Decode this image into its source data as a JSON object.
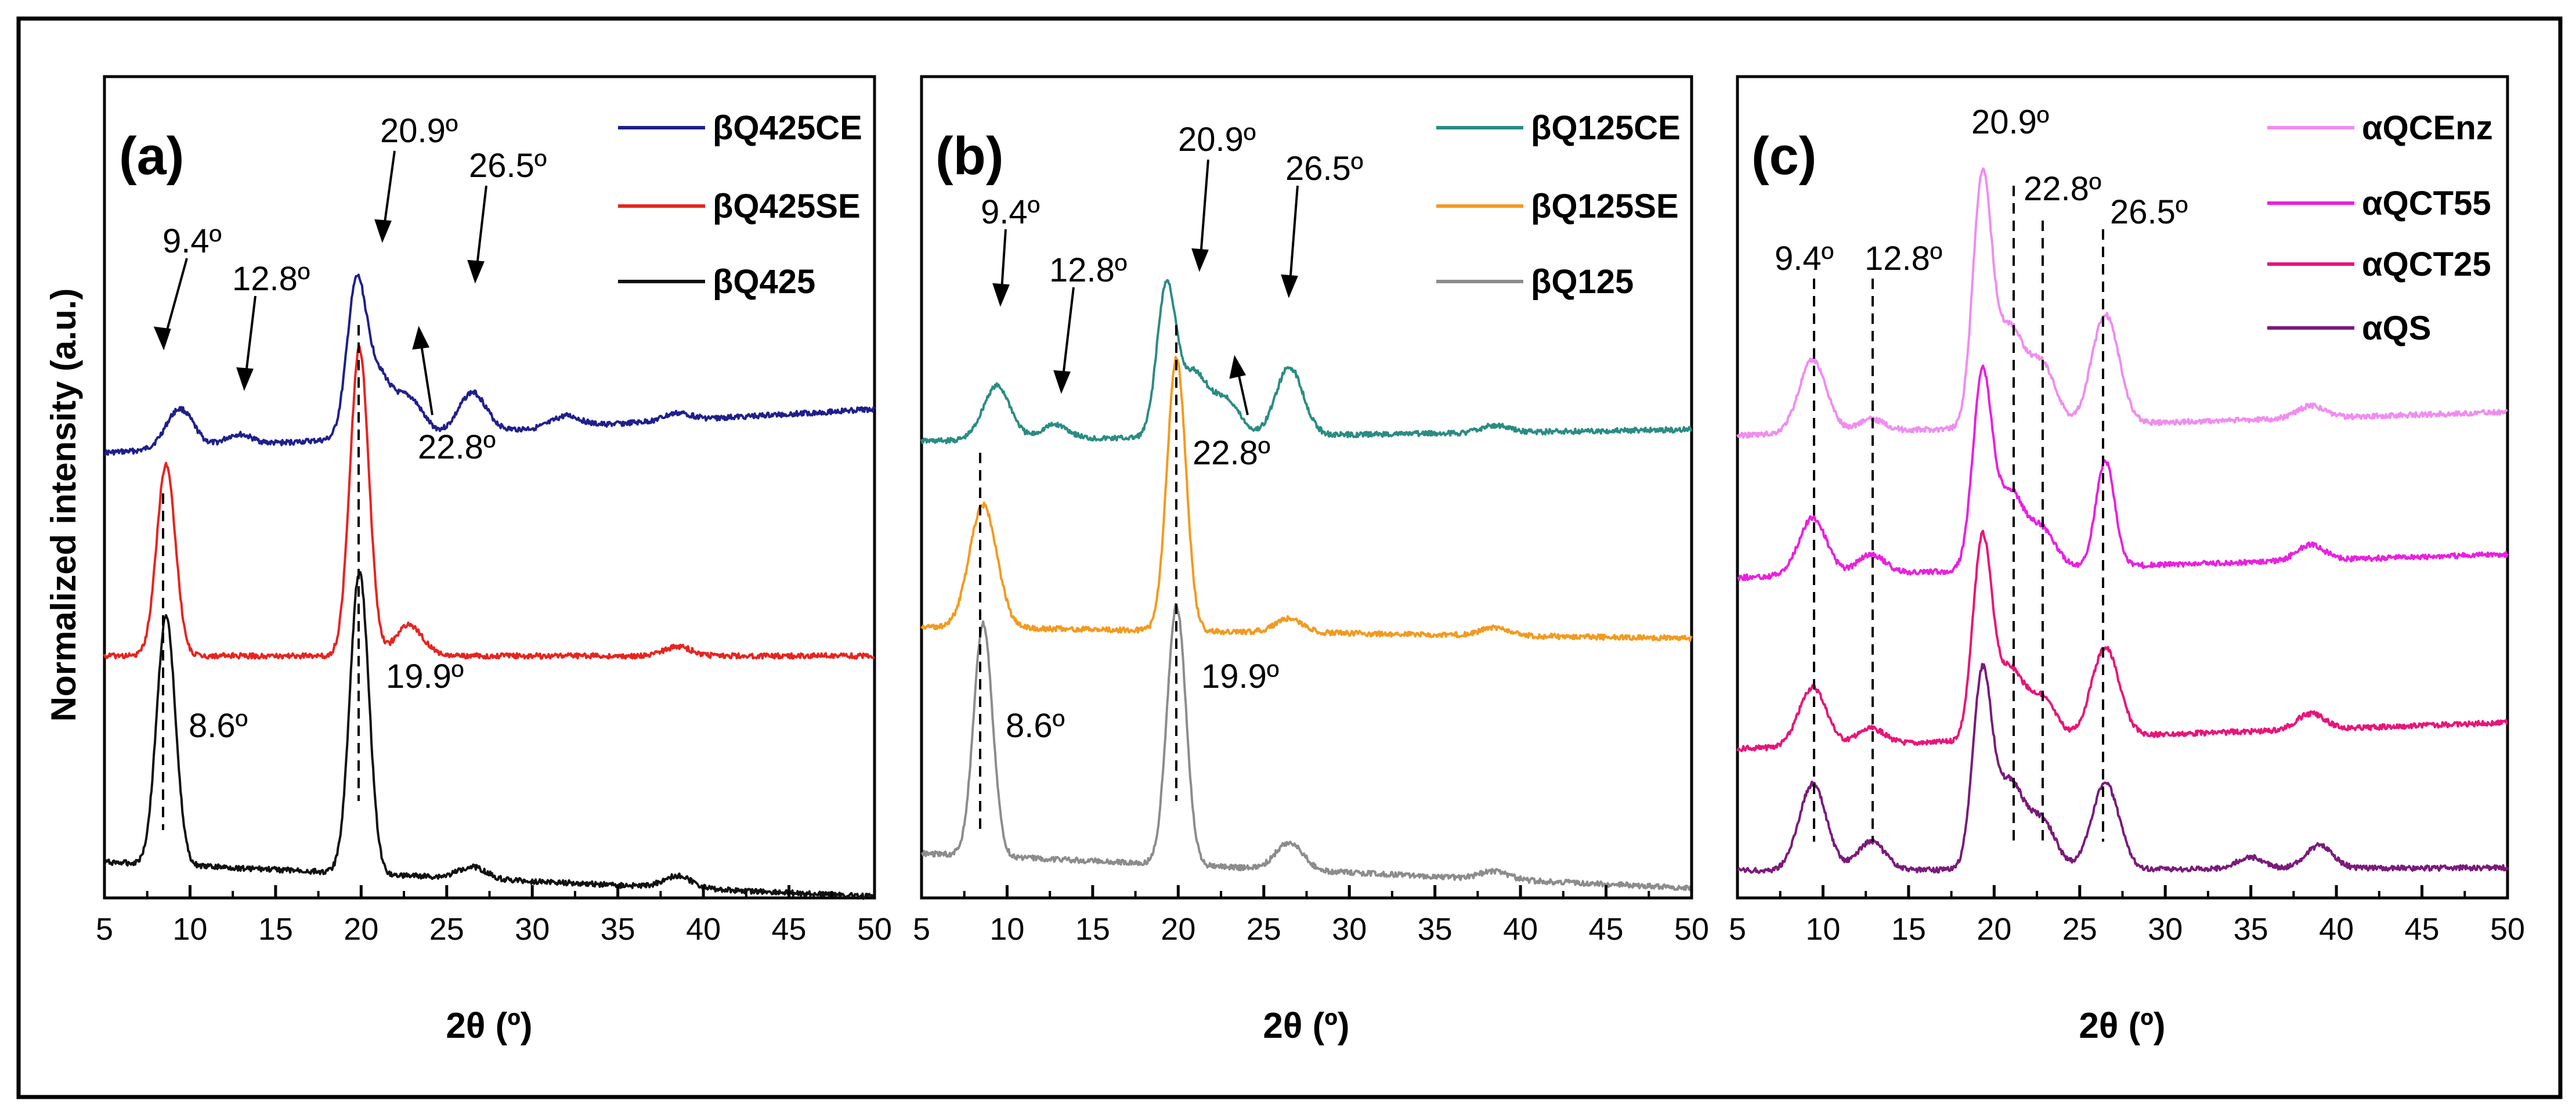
{
  "ylabel": "Normalized intensity (a.u.)",
  "chart_data": [
    {
      "type": "line",
      "panel_label": "(a)",
      "xlabel": "2θ (º)",
      "xlim": [
        5,
        50
      ],
      "xticks": [
        5,
        10,
        15,
        20,
        25,
        30,
        35,
        40,
        45,
        50
      ],
      "series": [
        {
          "name": "βQ425CE",
          "color": "#1f1f8c",
          "peaks": [
            {
              "x": 9.4,
              "y": 0.22
            },
            {
              "x": 12.8,
              "y": 0.06
            },
            {
              "x": 19.7,
              "y": 0.78
            },
            {
              "x": 20.9,
              "y": 0.35
            },
            {
              "x": 22.8,
              "y": 0.2
            },
            {
              "x": 26.5,
              "y": 0.22
            },
            {
              "x": 32,
              "y": 0.06
            },
            {
              "x": 38.5,
              "y": 0.04
            }
          ]
        },
        {
          "name": "βQ425SE",
          "color": "#e8231f",
          "peaks": [
            {
              "x": 8.6,
              "y": 0.62
            },
            {
              "x": 19.9,
              "y": 1.0
            },
            {
              "x": 22.8,
              "y": 0.1
            },
            {
              "x": 38.5,
              "y": 0.03
            }
          ]
        },
        {
          "name": "βQ425",
          "color": "#111111",
          "peaks": [
            {
              "x": 8.6,
              "y": 0.82
            },
            {
              "x": 19.9,
              "y": 1.0
            },
            {
              "x": 26.5,
              "y": 0.04
            },
            {
              "x": 38.5,
              "y": 0.04
            }
          ]
        }
      ],
      "annotations": [
        "9.4º",
        "12.8º",
        "20.9º",
        "26.5º",
        "22.8º",
        "8.6º",
        "19.9º"
      ]
    },
    {
      "type": "line",
      "panel_label": "(b)",
      "xlabel": "2θ (º)",
      "xlim": [
        5,
        50
      ],
      "xticks": [
        5,
        10,
        15,
        20,
        25,
        30,
        35,
        40,
        45,
        50
      ],
      "series": [
        {
          "name": "βQ125CE",
          "color": "#2a8c84",
          "peaks": [
            {
              "x": 9.4,
              "y": 0.3
            },
            {
              "x": 12.8,
              "y": 0.08
            },
            {
              "x": 19.3,
              "y": 0.82
            },
            {
              "x": 20.9,
              "y": 0.35
            },
            {
              "x": 22.8,
              "y": 0.2
            },
            {
              "x": 26.5,
              "y": 0.38
            },
            {
              "x": 38.5,
              "y": 0.04
            }
          ]
        },
        {
          "name": "βQ125SE",
          "color": "#f39a1e",
          "peaks": [
            {
              "x": 8.6,
              "y": 0.45
            },
            {
              "x": 19.9,
              "y": 1.0
            },
            {
              "x": 26.5,
              "y": 0.05
            },
            {
              "x": 38.5,
              "y": 0.03
            }
          ]
        },
        {
          "name": "βQ125",
          "color": "#8c8c8c",
          "peaks": [
            {
              "x": 8.6,
              "y": 0.85
            },
            {
              "x": 19.9,
              "y": 0.95
            },
            {
              "x": 26.5,
              "y": 0.1
            },
            {
              "x": 38.5,
              "y": 0.03
            }
          ]
        }
      ],
      "annotations": [
        "9.4º",
        "12.8º",
        "20.9º",
        "26.5º",
        "22.8º",
        "8.6º",
        "19.9º"
      ]
    },
    {
      "type": "line",
      "panel_label": "(c)",
      "xlabel": "2θ (º)",
      "xlim": [
        5,
        50
      ],
      "xticks": [
        5,
        10,
        15,
        20,
        25,
        30,
        35,
        40,
        45,
        50
      ],
      "series": [
        {
          "name": "αQCEnz",
          "color": "#f08cf0",
          "peaks": [
            {
              "x": 9.4,
              "y": 0.3
            },
            {
              "x": 12.8,
              "y": 0.05
            },
            {
              "x": 19.3,
              "y": 1.0
            },
            {
              "x": 20.9,
              "y": 0.4
            },
            {
              "x": 22.8,
              "y": 0.25
            },
            {
              "x": 26.5,
              "y": 0.45
            },
            {
              "x": 38.5,
              "y": 0.05
            }
          ]
        },
        {
          "name": "αQCT55",
          "color": "#ea1fe0",
          "peaks": [
            {
              "x": 9.4,
              "y": 0.3
            },
            {
              "x": 12.8,
              "y": 0.1
            },
            {
              "x": 19.3,
              "y": 1.0
            },
            {
              "x": 20.9,
              "y": 0.4
            },
            {
              "x": 22.8,
              "y": 0.2
            },
            {
              "x": 26.5,
              "y": 0.55
            },
            {
              "x": 38.5,
              "y": 0.08
            }
          ]
        },
        {
          "name": "αQCT25",
          "color": "#e8147a",
          "peaks": [
            {
              "x": 9.4,
              "y": 0.3
            },
            {
              "x": 12.8,
              "y": 0.08
            },
            {
              "x": 19.3,
              "y": 1.0
            },
            {
              "x": 20.9,
              "y": 0.35
            },
            {
              "x": 22.8,
              "y": 0.2
            },
            {
              "x": 26.5,
              "y": 0.45
            },
            {
              "x": 38.5,
              "y": 0.08
            }
          ]
        },
        {
          "name": "αQS",
          "color": "#7a1a7a",
          "peaks": [
            {
              "x": 9.4,
              "y": 0.45
            },
            {
              "x": 12.8,
              "y": 0.15
            },
            {
              "x": 19.3,
              "y": 1.0
            },
            {
              "x": 20.9,
              "y": 0.45
            },
            {
              "x": 22.8,
              "y": 0.25
            },
            {
              "x": 26.5,
              "y": 0.45
            },
            {
              "x": 35,
              "y": 0.06
            },
            {
              "x": 39,
              "y": 0.12
            }
          ]
        }
      ],
      "annotations": [
        "20.9º",
        "9.4º",
        "12.8º",
        "22.8º",
        "26.5º"
      ]
    }
  ]
}
